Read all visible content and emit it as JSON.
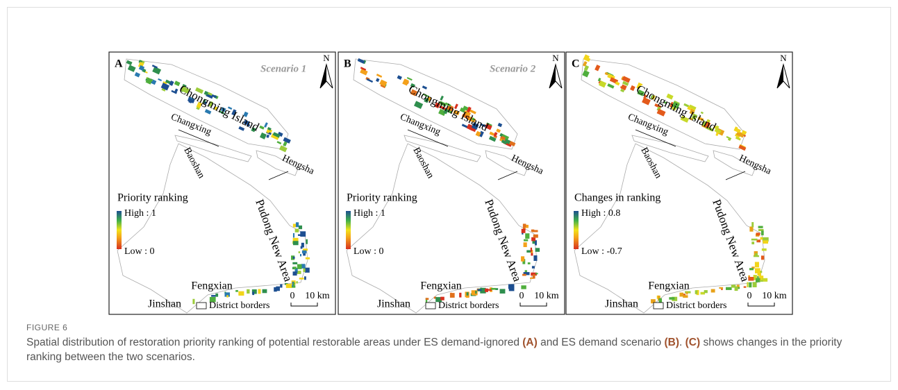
{
  "figure": {
    "label": "FIGURE 6",
    "caption": [
      {
        "text": "Spatial distribution of restoration priority ranking of potential restorable areas under ES demand-ignored ",
        "bold": false
      },
      {
        "text": "(A)",
        "bold": true
      },
      {
        "text": " and ES demand scenario ",
        "bold": false
      },
      {
        "text": "(B)",
        "bold": true
      },
      {
        "text": ". ",
        "bold": false
      },
      {
        "text": "(C)",
        "bold": true
      },
      {
        "text": " shows changes in the priority ranking between the two scenarios.",
        "bold": false
      }
    ],
    "panels": [
      {
        "label": "A",
        "scenario": "Scenario 1",
        "north": "N",
        "places": {
          "chongming": "Chongming Island",
          "changxing": "Changxing",
          "baoshan": "Baoshan",
          "hengsha": "Hengsha",
          "pudong": "Pudong New Area",
          "fengxian": "Fengxian",
          "jinshan": "Jinshan"
        },
        "legend": {
          "title": "Priority ranking",
          "high": "High : 1",
          "low": "Low : 0"
        },
        "district_borders": "District borders",
        "scale_start": "0",
        "scale_end": "10 km"
      },
      {
        "label": "B",
        "scenario": "Scenario 2",
        "north": "N",
        "places": {
          "chongming": "Chongming Island",
          "changxing": "Changxing",
          "baoshan": "Baoshan",
          "hengsha": "Hengsha",
          "pudong": "Pudong New Area",
          "fengxian": "Fengxian",
          "jinshan": "Jinshan"
        },
        "legend": {
          "title": "Priority ranking",
          "high": "High : 1",
          "low": "Low : 0"
        },
        "district_borders": "District borders",
        "scale_start": "0",
        "scale_end": "10 km"
      },
      {
        "label": "C",
        "north": "N",
        "places": {
          "chongming": "Chongming Island",
          "changxing": "Changxing",
          "baoshan": "Baoshan",
          "hengsha": "Hengsha",
          "pudong": "Pudong New Area",
          "fengxian": "Fengxian",
          "jinshan": "Jinshan"
        },
        "legend": {
          "title": "Changes in ranking",
          "high": "High : 0.8",
          "low": "Low : -0.7"
        },
        "district_borders": "District borders",
        "scale_start": "0",
        "scale_end": "10 km"
      }
    ]
  }
}
